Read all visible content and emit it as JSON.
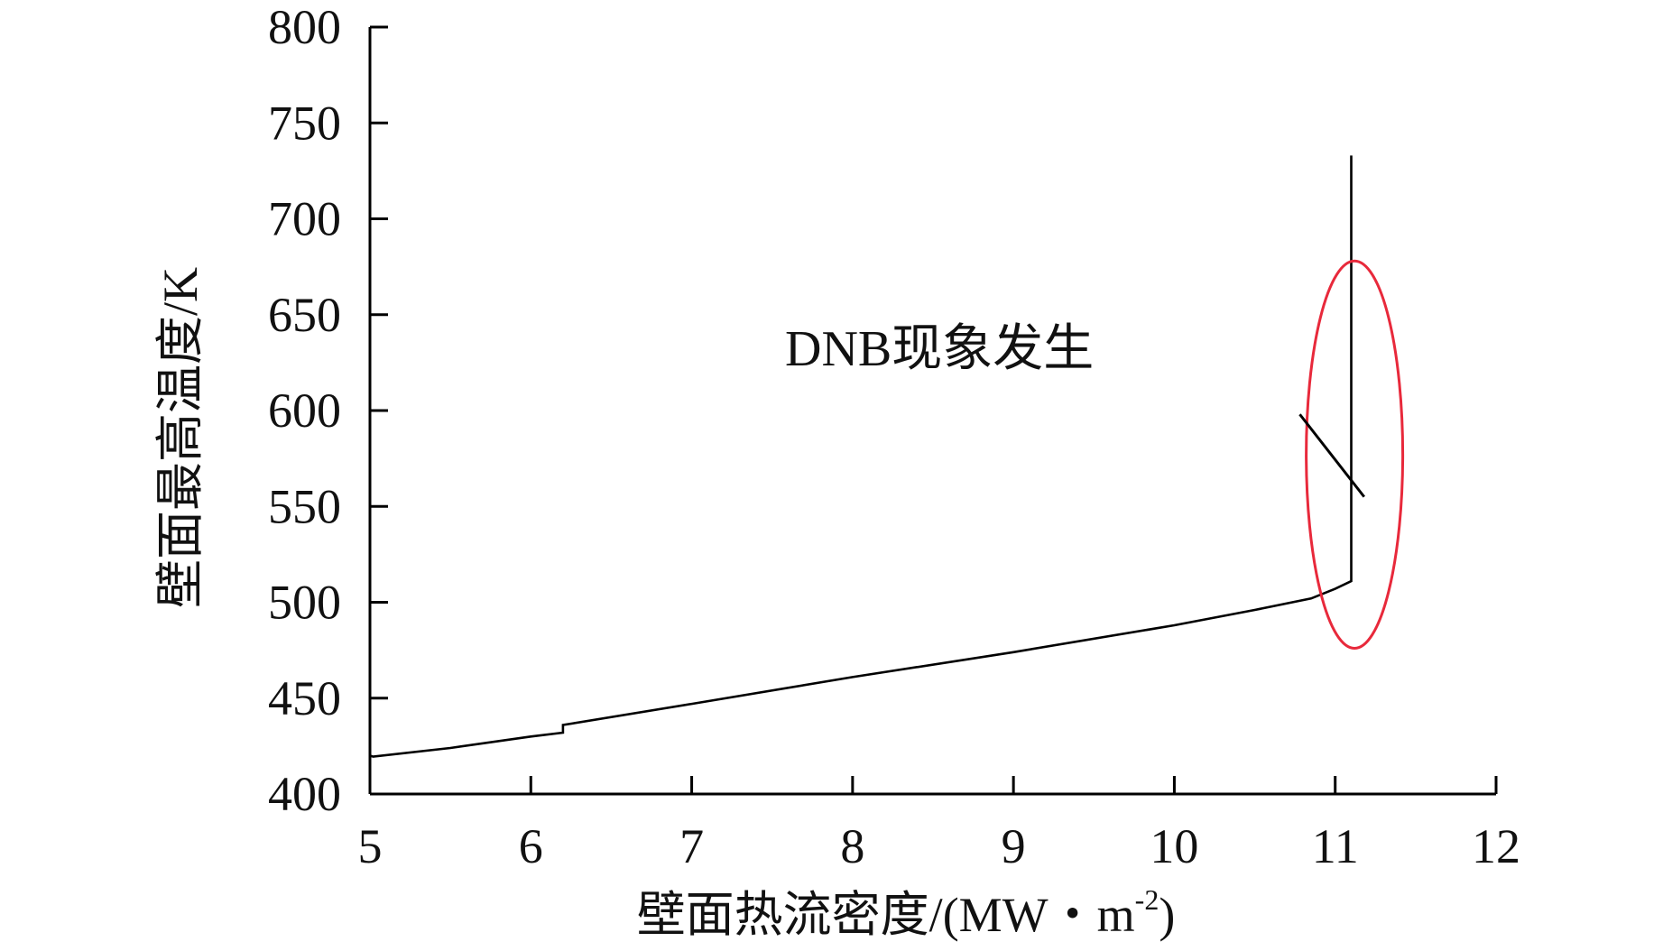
{
  "chart_data": {
    "type": "line",
    "title": "",
    "xlabel": "壁面热流密度/(MW・m",
    "xlabel_sup": "-2",
    "xlabel_end": ")",
    "ylabel": "壁面最高温度/K",
    "xlim": [
      5,
      12
    ],
    "ylim": [
      400,
      800
    ],
    "xticks": [
      5,
      6,
      7,
      8,
      9,
      10,
      11,
      12
    ],
    "yticks": [
      400,
      450,
      500,
      550,
      600,
      650,
      700,
      750,
      800
    ],
    "grid": false,
    "series": [
      {
        "x": [
          5.0,
          5.0,
          5.02,
          5.5,
          6.0,
          6.2,
          6.2,
          7.0,
          8.0,
          9.0,
          10.0,
          10.5,
          10.85,
          11.0,
          11.1,
          11.1
        ],
        "y": [
          432,
          420,
          419.5,
          424,
          430,
          432,
          436,
          447,
          461,
          474,
          488,
          496,
          502,
          507,
          511,
          733
        ],
        "color": "#000000"
      }
    ],
    "annotations": [
      {
        "text": "DNB现象发生",
        "ellipse": {
          "cx": 11.12,
          "cy": 577,
          "rx": 0.3,
          "ry": 101
        },
        "ellipse_color": "#e8293b",
        "leader_from": [
          10.78,
          598
        ],
        "leader_to": [
          11.18,
          555
        ]
      }
    ]
  }
}
